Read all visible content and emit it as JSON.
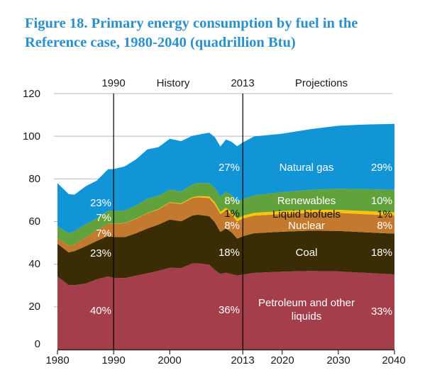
{
  "title": {
    "line1": "Figure 18. Primary energy consumption by fuel in the",
    "line2": "Reference case, 1980-2040 (quadrillion Btu)",
    "color": "#2b90cb"
  },
  "chart_data": {
    "type": "area",
    "stacked": true,
    "title": "Figure 18. Primary energy consumption by fuel in the Reference case, 1980-2040 (quadrillion Btu)",
    "ylabel": "quadrillion Btu",
    "xlim": [
      1980,
      2040
    ],
    "ylim": [
      0,
      120
    ],
    "grid": "horizontal",
    "x": [
      1980,
      1982,
      1983,
      1985,
      1987,
      1989,
      1990,
      1992,
      1994,
      1996,
      1998,
      2000,
      2002,
      2004,
      2005,
      2007,
      2008,
      2009,
      2010,
      2011,
      2012,
      2013,
      2015,
      2020,
      2025,
      2030,
      2035,
      2040
    ],
    "series": [
      {
        "key": "petroleum",
        "name": "Petroleum and other liquids",
        "color": "#a53e4b",
        "label_color": "#ffffff",
        "values": [
          34.2,
          30.2,
          30.1,
          30.9,
          32.9,
          34.2,
          33.6,
          33.5,
          34.6,
          35.7,
          36.9,
          38.3,
          38.2,
          40.3,
          40.4,
          39.8,
          37.3,
          35.4,
          36.0,
          35.3,
          34.7,
          35.1,
          35.9,
          36.5,
          36.8,
          36.6,
          35.9,
          35.2
        ]
      },
      {
        "key": "coal",
        "name": "Coal",
        "color": "#3a2d06",
        "label_color": "#ffffff",
        "values": [
          15.4,
          15.3,
          16.0,
          17.5,
          18.0,
          19.1,
          19.2,
          19.2,
          19.9,
          21.0,
          21.7,
          22.6,
          21.9,
          22.5,
          22.8,
          22.7,
          22.4,
          19.7,
          20.8,
          19.6,
          17.3,
          18.0,
          18.6,
          18.7,
          18.9,
          19.0,
          19.0,
          19.1
        ]
      },
      {
        "key": "nuclear",
        "name": "Nuclear",
        "color": "#c47a2e",
        "label_color": "#ffffff",
        "values": [
          2.7,
          3.1,
          3.2,
          4.1,
          4.9,
          5.6,
          6.1,
          6.5,
          6.8,
          7.2,
          7.1,
          7.9,
          8.1,
          8.2,
          8.2,
          8.5,
          8.4,
          8.4,
          8.4,
          8.3,
          8.1,
          8.3,
          8.3,
          8.3,
          8.4,
          8.5,
          8.5,
          8.5
        ]
      },
      {
        "key": "liquid_biofuels",
        "name": "Liquid biofuels",
        "color": "#ffc403",
        "label_color": "#141414",
        "values": [
          0,
          0,
          0,
          0,
          0,
          0,
          0.1,
          0.1,
          0.1,
          0.1,
          0.2,
          0.2,
          0.3,
          0.4,
          0.5,
          0.8,
          1.0,
          1.1,
          1.2,
          1.2,
          1.2,
          1.3,
          1.3,
          1.4,
          1.4,
          1.4,
          1.5,
          1.5
        ]
      },
      {
        "key": "renewables",
        "name": "Renewables",
        "color": "#62a23c",
        "label_color": "#ffffff",
        "values": [
          5.5,
          5.9,
          6.1,
          6.2,
          5.7,
          6.2,
          6.0,
          5.9,
          6.1,
          6.7,
          6.2,
          6.0,
          5.6,
          5.9,
          6.2,
          6.2,
          6.7,
          7.2,
          7.5,
          8.1,
          7.9,
          7.8,
          8.2,
          8.9,
          9.4,
          9.9,
          10.3,
          10.6
        ]
      },
      {
        "key": "natural_gas",
        "name": "Natural gas",
        "color": "#1295d6",
        "label_color": "#ffffff",
        "values": [
          20.2,
          18.4,
          17.2,
          17.8,
          17.7,
          19.4,
          19.6,
          20.7,
          21.7,
          23.1,
          22.8,
          23.8,
          23.6,
          22.9,
          22.6,
          23.7,
          23.8,
          23.4,
          24.6,
          24.9,
          26.1,
          26.6,
          27.6,
          27.4,
          28.4,
          29.5,
          30.3,
          30.9
        ]
      }
    ],
    "y_ticks": [
      0,
      20,
      40,
      60,
      80,
      100,
      120
    ],
    "y_tick_labels": [
      "120",
      "100",
      "80",
      "60",
      "40",
      "20",
      "0"
    ],
    "x_tick_labels": [
      "1980",
      "1990",
      "2000",
      "2013",
      "2020",
      "2030",
      "2040"
    ],
    "x_tick_years": [
      1980,
      1990,
      2000,
      2013,
      2020,
      2030,
      2040
    ],
    "reference_lines_years": [
      1990,
      2013
    ],
    "annotations": {
      "header": {
        "left_year": "1990",
        "history": "History",
        "right_year": "2013",
        "projections": "Projections"
      },
      "col_1990": {
        "natural_gas": "23%",
        "renewables": "7%",
        "nuclear": "7%",
        "coal": "23%",
        "petroleum": "40%"
      },
      "col_2013": {
        "natural_gas": "27%",
        "renewables": "8%",
        "liquid_biofuels": "1%",
        "nuclear": "8%",
        "coal": "18%",
        "petroleum": "36%"
      },
      "col_2040": {
        "natural_gas": "29%",
        "renewables": "10%",
        "liquid_biofuels": "1%",
        "nuclear": "8%",
        "coal": "18%",
        "petroleum": "33%"
      },
      "series_names": {
        "natural_gas": "Natural gas",
        "renewables": "Renewables",
        "liquid_biofuels": "Liquid biofuels",
        "nuclear": "Nuclear",
        "coal": "Coal",
        "petroleum": "Petroleum and other liquids"
      }
    },
    "colors": {
      "gridline": "#b9b9b9",
      "axis": "#262626",
      "reference_line": "#000000",
      "title": "#2b90cb"
    }
  }
}
